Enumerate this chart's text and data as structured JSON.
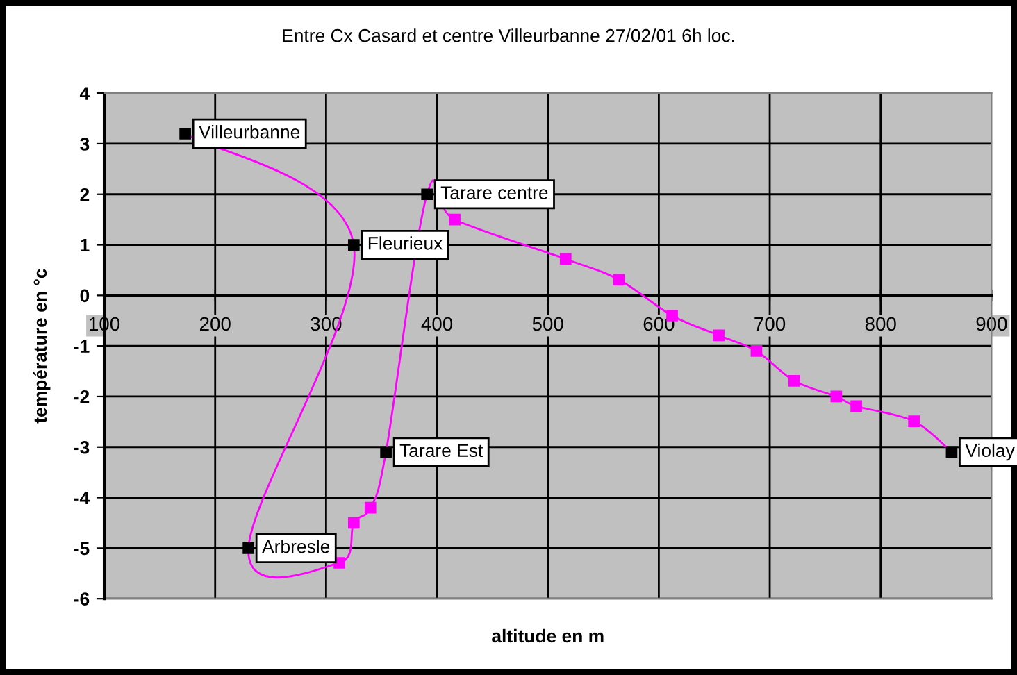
{
  "chart_data": {
    "type": "line",
    "title": "Entre Cx Casard et centre Villeurbanne 27/02/01 6h loc.",
    "xlabel": "altitude en m",
    "ylabel": "température en °c",
    "x": [
      173,
      325,
      230,
      312,
      325,
      340,
      354,
      391,
      416,
      516,
      564,
      612,
      654,
      688,
      722,
      760,
      778,
      830,
      864
    ],
    "series": [
      {
        "color": "#ff00ff",
        "values": [
          3.2,
          1.0,
          -5.0,
          -5.29,
          -4.5,
          -4.2,
          -3.1,
          2.0,
          1.5,
          0.72,
          0.31,
          -0.4,
          -0.79,
          -1.1,
          -1.69,
          -2.0,
          -2.19,
          -2.49,
          -3.1
        ],
        "colors": [
          "#000000",
          "#000000",
          "#000000",
          "#ff00ff",
          "#ff00ff",
          "#ff00ff",
          "#000000",
          "#000000",
          "#ff00ff",
          "#ff00ff",
          "#ff00ff",
          "#ff00ff",
          "#ff00ff",
          "#ff00ff",
          "#ff00ff",
          "#ff00ff",
          "#ff00ff",
          "#ff00ff",
          "#000000"
        ]
      }
    ],
    "annotations": [
      {
        "text": "Villeurbanne",
        "x": 173,
        "y": 3.2
      },
      {
        "text": "Fleurieux",
        "x": 325,
        "y": 1.0
      },
      {
        "text": "Arbresle",
        "x": 230,
        "y": -5.0
      },
      {
        "text": "Tarare Est",
        "x": 354,
        "y": -3.1
      },
      {
        "text": "Tarare centre",
        "x": 391,
        "y": 2.0
      },
      {
        "text": "Violay",
        "x": 864,
        "y": -3.1
      }
    ],
    "xlim": [
      100,
      900
    ],
    "xticks": [
      100,
      200,
      300,
      400,
      500,
      600,
      700,
      800,
      900
    ],
    "ylim": [
      -6,
      4
    ],
    "yticks": [
      -6,
      -5,
      -4,
      -3,
      -2,
      -1,
      0,
      1,
      2,
      3,
      4
    ],
    "grid": true,
    "marker": "square",
    "line_style": "solid"
  }
}
